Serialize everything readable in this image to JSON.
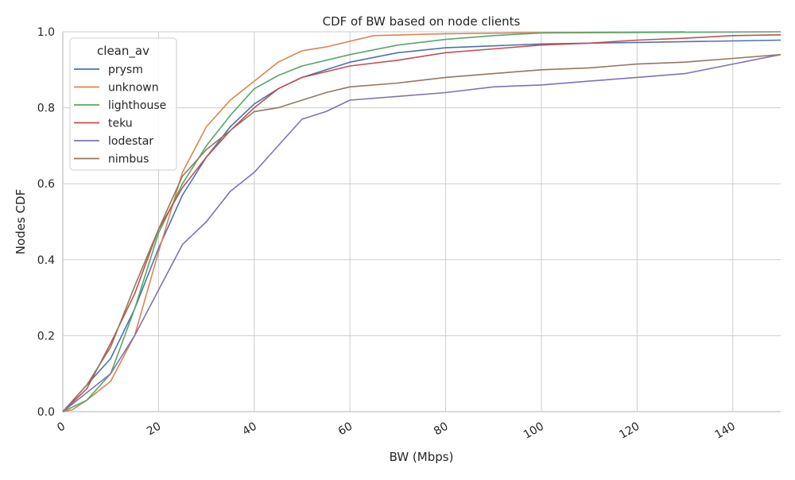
{
  "chart_data": {
    "type": "line",
    "title": "CDF of BW based on node clients",
    "xlabel": "BW (Mbps)",
    "ylabel": "Nodes CDF",
    "xlim": [
      0,
      150
    ],
    "ylim": [
      0,
      1.0
    ],
    "xticks": [
      "0",
      "20",
      "40",
      "60",
      "80",
      "100",
      "120",
      "140"
    ],
    "xtick_values": [
      0,
      20,
      40,
      60,
      80,
      100,
      120,
      140
    ],
    "yticks": [
      "0.0",
      "0.2",
      "0.4",
      "0.6",
      "0.8",
      "1.0"
    ],
    "ytick_values": [
      0,
      0.2,
      0.4,
      0.6,
      0.8,
      1.0
    ],
    "grid": true,
    "legend": {
      "title": "clean_av",
      "placement": "top-left"
    },
    "series": [
      {
        "name": "prysm",
        "color": "#4c72b0",
        "x": [
          0,
          5,
          10,
          15,
          20,
          25,
          30,
          35,
          40,
          45,
          50,
          60,
          70,
          80,
          90,
          100,
          110,
          120,
          130,
          140,
          150
        ],
        "y": [
          0,
          0.07,
          0.14,
          0.27,
          0.43,
          0.57,
          0.67,
          0.75,
          0.81,
          0.85,
          0.88,
          0.92,
          0.945,
          0.958,
          0.963,
          0.968,
          0.97,
          0.972,
          0.974,
          0.976,
          0.978
        ]
      },
      {
        "name": "unknown",
        "color": "#dd8452",
        "x": [
          0,
          2,
          5,
          10,
          15,
          20,
          25,
          30,
          35,
          40,
          45,
          50,
          55,
          60,
          65,
          80,
          100,
          130
        ],
        "y": [
          0,
          0.005,
          0.03,
          0.08,
          0.2,
          0.42,
          0.63,
          0.75,
          0.82,
          0.87,
          0.92,
          0.95,
          0.96,
          0.975,
          0.99,
          0.995,
          0.998,
          1.0
        ]
      },
      {
        "name": "lighthouse",
        "color": "#55a868",
        "x": [
          0,
          5,
          10,
          15,
          20,
          25,
          30,
          35,
          40,
          45,
          50,
          60,
          70,
          80,
          90,
          100,
          150
        ],
        "y": [
          0,
          0.03,
          0.1,
          0.27,
          0.47,
          0.6,
          0.7,
          0.78,
          0.85,
          0.885,
          0.91,
          0.94,
          0.965,
          0.98,
          0.99,
          0.997,
          1.0
        ]
      },
      {
        "name": "teku",
        "color": "#c44e52",
        "x": [
          0,
          5,
          10,
          15,
          20,
          25,
          30,
          35,
          40,
          45,
          50,
          60,
          70,
          80,
          90,
          100,
          110,
          120,
          130,
          140,
          150
        ],
        "y": [
          0,
          0.06,
          0.18,
          0.31,
          0.48,
          0.59,
          0.67,
          0.74,
          0.8,
          0.85,
          0.88,
          0.91,
          0.925,
          0.945,
          0.955,
          0.965,
          0.97,
          0.978,
          0.983,
          0.99,
          0.992
        ]
      },
      {
        "name": "lodestar",
        "color": "#8172b3",
        "x": [
          0,
          5,
          10,
          15,
          20,
          25,
          30,
          35,
          40,
          45,
          50,
          55,
          60,
          70,
          80,
          90,
          100,
          110,
          120,
          130,
          140,
          150
        ],
        "y": [
          0,
          0.05,
          0.1,
          0.2,
          0.32,
          0.44,
          0.5,
          0.58,
          0.63,
          0.7,
          0.77,
          0.79,
          0.82,
          0.83,
          0.84,
          0.855,
          0.86,
          0.87,
          0.88,
          0.89,
          0.915,
          0.94
        ]
      },
      {
        "name": "nimbus",
        "color": "#937860",
        "x": [
          0,
          5,
          10,
          15,
          20,
          25,
          30,
          35,
          40,
          45,
          50,
          55,
          60,
          70,
          80,
          90,
          100,
          110,
          120,
          130,
          140,
          150
        ],
        "y": [
          0,
          0.07,
          0.17,
          0.33,
          0.48,
          0.62,
          0.69,
          0.74,
          0.79,
          0.8,
          0.82,
          0.84,
          0.855,
          0.865,
          0.88,
          0.89,
          0.9,
          0.905,
          0.915,
          0.92,
          0.93,
          0.94
        ]
      }
    ]
  }
}
